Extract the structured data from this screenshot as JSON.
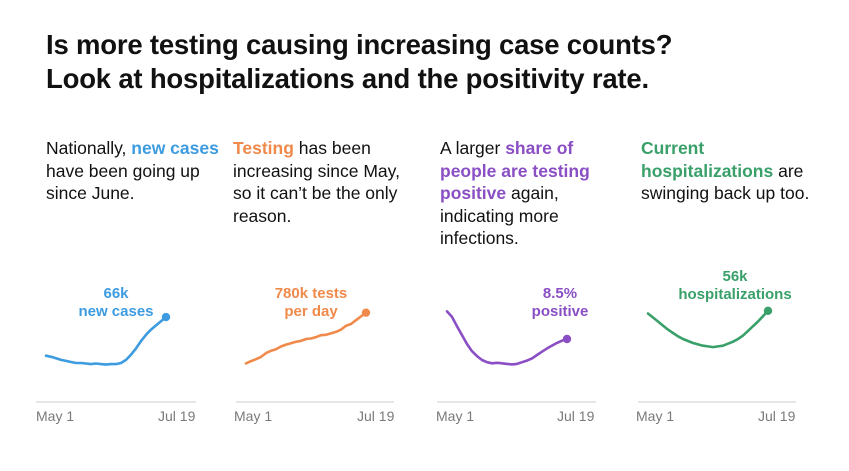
{
  "title": {
    "line1": "Is more testing causing increasing case counts?",
    "line2": "Look at hospitalizations and the positivity rate."
  },
  "colors": {
    "cases": "#3d9be0",
    "testing": "#f08a4b",
    "positive": "#8a4fc4",
    "hospital": "#3aa06a",
    "axis": "#cccccc",
    "text": "#111111",
    "muted": "#7a7a7a"
  },
  "panels": [
    {
      "caption_parts": [
        {
          "text": "Nationally, ",
          "style": "normal"
        },
        {
          "text": "new cases",
          "style": "highlight"
        },
        {
          "text": " have been going up since June.",
          "style": "normal"
        }
      ],
      "value_label": [
        "66k",
        "new cases"
      ],
      "x_start": "May 1",
      "x_end": "Jul 19",
      "color_key": "cases"
    },
    {
      "caption_parts": [
        {
          "text": "Testing",
          "style": "highlight"
        },
        {
          "text": " has been increasing since May, so it can’t be the only reason.",
          "style": "normal"
        }
      ],
      "value_label": [
        "780k tests",
        "per day"
      ],
      "x_start": "May 1",
      "x_end": "Jul 19",
      "color_key": "testing"
    },
    {
      "caption_parts": [
        {
          "text": "A larger ",
          "style": "normal"
        },
        {
          "text": "share of people are testing positive",
          "style": "highlight"
        },
        {
          "text": " again, indicating more infections.",
          "style": "normal"
        }
      ],
      "value_label": [
        "8.5%",
        "positive"
      ],
      "x_start": "May 1",
      "x_end": "Jul 19",
      "color_key": "positive"
    },
    {
      "caption_parts": [
        {
          "text": "Current hospitalizations",
          "style": "highlight"
        },
        {
          "text": " are swinging back up too.",
          "style": "normal"
        }
      ],
      "value_label": [
        "56k",
        "hospitalizations"
      ],
      "x_start": "May 1",
      "x_end": "Jul 19",
      "color_key": "hospital"
    }
  ],
  "chart_data": [
    {
      "type": "line",
      "series": [
        {
          "name": "new cases",
          "unit": "cases per day",
          "values": [
            29000,
            28000,
            26500,
            25000,
            24000,
            23000,
            22000,
            22000,
            21500,
            21000,
            21500,
            21000,
            20500,
            21000,
            21000,
            22000,
            25000,
            30000,
            36000,
            43000,
            49000,
            54000,
            58000,
            62000,
            66000
          ]
        }
      ],
      "x": [
        "May 1",
        "",
        "",
        "",
        "",
        "",
        "",
        "",
        "",
        "",
        "",
        "",
        "",
        "",
        "",
        "",
        "",
        "",
        "",
        "",
        "",
        "",
        "",
        "",
        "Jul 19"
      ],
      "ylim": [
        0,
        90000
      ]
    },
    {
      "type": "line",
      "series": [
        {
          "name": "tests per day",
          "unit": "tests per day",
          "values": [
            240000,
            265000,
            285000,
            310000,
            350000,
            375000,
            390000,
            420000,
            440000,
            455000,
            470000,
            480000,
            500000,
            505000,
            520000,
            540000,
            545000,
            560000,
            575000,
            600000,
            640000,
            660000,
            700000,
            740000,
            780000
          ]
        }
      ],
      "x": [
        "May 1",
        "",
        "",
        "",
        "",
        "",
        "",
        "",
        "",
        "",
        "",
        "",
        "",
        "",
        "",
        "",
        "",
        "",
        "",
        "",
        "",
        "",
        "",
        "",
        "Jul 19"
      ],
      "ylim": [
        0,
        1000000
      ]
    },
    {
      "type": "line",
      "series": [
        {
          "name": "share testing positive",
          "unit": "percent",
          "values": [
            13.5,
            12.5,
            10.8,
            9.2,
            7.6,
            6.3,
            5.4,
            4.7,
            4.3,
            4.1,
            4.2,
            4.1,
            4.0,
            3.9,
            4.0,
            4.3,
            4.6,
            5.0,
            5.6,
            6.2,
            6.8,
            7.3,
            7.8,
            8.2,
            8.5
          ]
        }
      ],
      "x": [
        "May 1",
        "",
        "",
        "",
        "",
        "",
        "",
        "",
        "",
        "",
        "",
        "",
        "",
        "",
        "",
        "",
        "",
        "",
        "",
        "",
        "",
        "",
        "",
        "",
        "Jul 19"
      ],
      "ylim": [
        0,
        17
      ]
    },
    {
      "type": "line",
      "series": [
        {
          "name": "current hospitalizations",
          "unit": "patients",
          "values": [
            54000,
            51000,
            48000,
            45000,
            42000,
            39500,
            37000,
            35000,
            33500,
            32000,
            31000,
            30000,
            29500,
            29000,
            29500,
            30000,
            31500,
            33000,
            35000,
            37500,
            41000,
            44500,
            48000,
            52000,
            56000
          ]
        }
      ],
      "x": [
        "May 1",
        "",
        "",
        "",
        "",
        "",
        "",
        "",
        "",
        "",
        "",
        "",
        "",
        "",
        "",
        "",
        "",
        "",
        "",
        "",
        "",
        "",
        "",
        "",
        "Jul 19"
      ],
      "ylim": [
        0,
        70000
      ]
    }
  ]
}
